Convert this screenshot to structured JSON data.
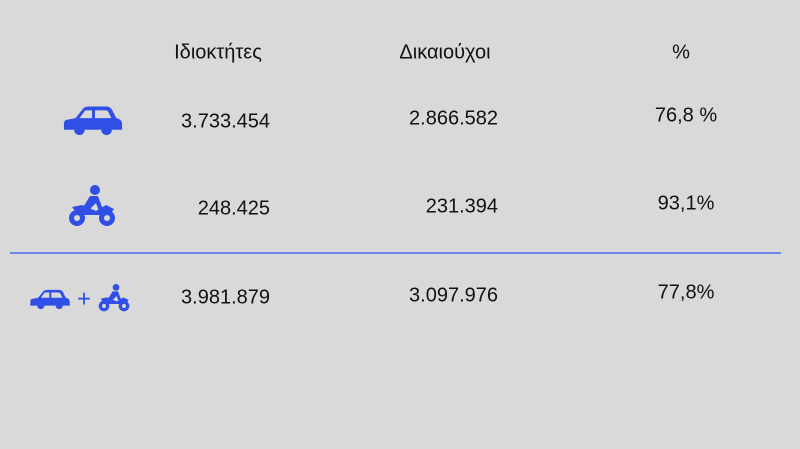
{
  "table": {
    "header": [
      "Ιδιοκτήτες",
      "Δικαιούχοι",
      "%"
    ],
    "rows": [
      [
        "3.733.454",
        "2.866.582",
        "76,8 %"
      ],
      [
        "248.425",
        "231.394",
        "93,1%"
      ],
      [
        "3.981.879",
        "3.097.976",
        "77,8%"
      ]
    ],
    "total_joiner": "+"
  }
}
